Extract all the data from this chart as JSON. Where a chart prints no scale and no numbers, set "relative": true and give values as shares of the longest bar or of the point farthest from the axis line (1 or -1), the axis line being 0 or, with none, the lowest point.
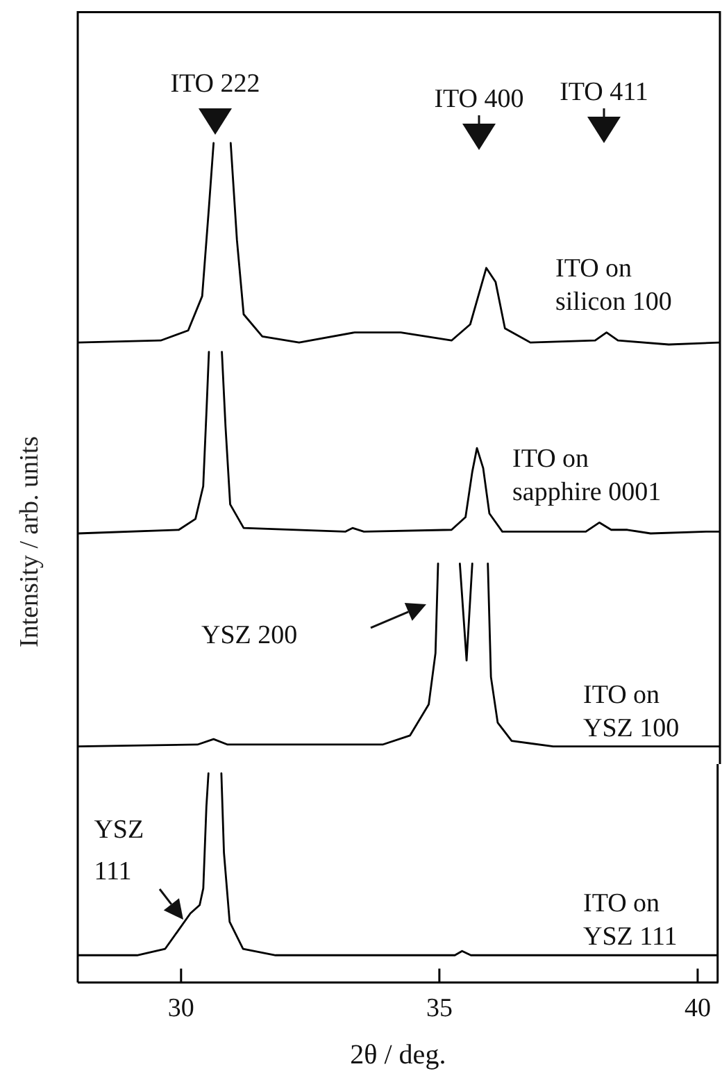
{
  "chart_data": [
    {
      "type": "line",
      "relative": true,
      "xlim": [
        28,
        40.4
      ],
      "xticks": [
        30,
        35,
        40
      ],
      "tick_labels": false,
      "marker": "none",
      "line_style": "solid",
      "annotations": [
        "ITO 222",
        "ITO 400",
        "ITO 411"
      ],
      "series": [
        {
          "name": "ITO on silicon 100",
          "color": "#000000",
          "x": [
            28.0,
            29.6,
            30.13,
            30.4,
            30.53,
            30.62,
            30.78,
            30.95,
            31.07,
            31.2,
            31.56,
            32.27,
            33.34,
            34.23,
            35.21,
            35.57,
            35.88,
            36.06,
            36.24,
            36.73,
            37.98,
            38.2,
            38.42,
            39.4,
            40.38
          ],
          "values": [
            0.01,
            0.02,
            0.07,
            0.24,
            0.68,
            1.0,
            null,
            1.0,
            0.52,
            0.15,
            0.04,
            0.01,
            0.06,
            0.06,
            0.02,
            0.1,
            0.38,
            0.31,
            0.08,
            0.01,
            0.02,
            0.06,
            0.02,
            0,
            0.01
          ]
        }
      ]
    },
    {
      "type": "line",
      "relative": true,
      "xlim": [
        28,
        40.4
      ],
      "xticks": [
        30,
        35,
        40
      ],
      "tick_labels": false,
      "marker": "none",
      "line_style": "solid",
      "ylabel": "Intensity / arb. units",
      "series": [
        {
          "name": "ITO on sapphire 0001",
          "color": "#000000",
          "x": [
            28.0,
            29.95,
            30.27,
            30.42,
            30.49,
            30.53,
            30.65,
            30.78,
            30.85,
            30.94,
            31.2,
            33.16,
            33.3,
            33.52,
            35.21,
            35.48,
            35.61,
            35.7,
            35.82,
            35.94,
            36.19,
            37.8,
            38.06,
            38.29,
            38.6,
            39.05,
            40.12,
            40.38
          ],
          "values": [
            0,
            0.02,
            0.08,
            0.26,
            0.72,
            1.0,
            null,
            1.0,
            0.59,
            0.16,
            0.03,
            0.01,
            0.03,
            0.01,
            0.02,
            0.09,
            0.34,
            0.47,
            0.36,
            0.11,
            0.01,
            0.01,
            0.06,
            0.02,
            0.02,
            0,
            0.01,
            0.01
          ]
        }
      ]
    },
    {
      "type": "line",
      "relative": true,
      "xlim": [
        28,
        40.4
      ],
      "xticks": [
        30,
        35,
        40
      ],
      "tick_labels": false,
      "marker": "none",
      "line_style": "solid",
      "annotations": [
        "YSZ 200"
      ],
      "series": [
        {
          "name": "ITO on YSZ 100",
          "color": "#000000",
          "x": [
            28.0,
            30.31,
            30.62,
            30.89,
            33.88,
            34.41,
            34.77,
            34.9,
            34.95,
            35.1,
            35.37,
            35.5,
            35.61,
            35.75,
            35.91,
            35.97,
            36.1,
            36.37,
            37.17,
            40.38
          ],
          "values": [
            0,
            0.01,
            0.04,
            0.01,
            0.01,
            0.06,
            0.23,
            0.51,
            1.0,
            null,
            1.0,
            0.47,
            1.0,
            null,
            1.0,
            0.38,
            0.13,
            0.03,
            0,
            0
          ]
        }
      ]
    },
    {
      "type": "line",
      "relative": true,
      "xlim": [
        28,
        40.4
      ],
      "xticks": [
        30,
        35,
        40
      ],
      "tick_labels": "x",
      "marker": "none",
      "line_style": "solid",
      "xlabel": "2θ / deg.",
      "annotations": [
        "YSZ 111"
      ],
      "series": [
        {
          "name": "ITO on YSZ 111",
          "color": "#000000",
          "x": [
            28.0,
            29.15,
            29.69,
            29.95,
            30.18,
            30.36,
            30.43,
            30.49,
            30.53,
            30.65,
            30.78,
            30.83,
            30.94,
            31.2,
            31.83,
            35.3,
            35.44,
            35.61,
            40.38
          ],
          "values": [
            0.13,
            0.13,
            0.16,
            0.25,
            0.33,
            0.37,
            0.45,
            0.84,
            1.0,
            null,
            1.0,
            0.62,
            0.29,
            0.16,
            0.13,
            0.13,
            0.15,
            0.13,
            0.13
          ]
        }
      ]
    }
  ]
}
